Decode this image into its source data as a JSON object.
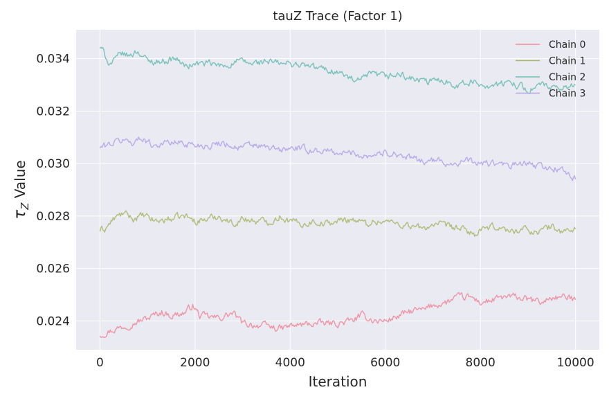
{
  "chart_data": {
    "type": "line",
    "title": "tauZ Trace (Factor 1)",
    "xlabel": "Iteration",
    "ylabel_symbol": "τ",
    "ylabel_subscript": "Z",
    "ylabel_suffix": " Value",
    "xlim": [
      -500,
      10500
    ],
    "ylim": [
      0.0229,
      0.0351
    ],
    "xticks": [
      0,
      2000,
      4000,
      6000,
      8000,
      10000
    ],
    "xtick_labels": [
      "0",
      "2000",
      "4000",
      "6000",
      "8000",
      "10000"
    ],
    "yticks": [
      0.024,
      0.026,
      0.028,
      0.03,
      0.032,
      0.034
    ],
    "ytick_labels": [
      "0.024",
      "0.026",
      "0.028",
      "0.030",
      "0.032",
      "0.034"
    ],
    "grid": true,
    "legend_position": "top-right",
    "background": "#eaeaf2",
    "series": [
      {
        "name": "Chain 0",
        "color": "#f08b9c",
        "x": [
          0,
          500,
          1000,
          1300,
          1500,
          1800,
          1950,
          2100,
          2500,
          2800,
          3000,
          3500,
          3800,
          4000,
          4500,
          5000,
          5300,
          5500,
          5800,
          6000,
          6300,
          6600,
          6800,
          7000,
          7300,
          7500,
          7800,
          8000,
          8300,
          8500,
          8800,
          9000,
          9300,
          9500,
          9800,
          10000
        ],
        "y": [
          0.02348,
          0.0238,
          0.0241,
          0.02435,
          0.0242,
          0.02432,
          0.0246,
          0.0242,
          0.0241,
          0.0243,
          0.0239,
          0.0238,
          0.0237,
          0.0238,
          0.0239,
          0.0239,
          0.024,
          0.0242,
          0.024,
          0.024,
          0.0242,
          0.0244,
          0.0244,
          0.0246,
          0.0247,
          0.0249,
          0.0249,
          0.0247,
          0.0248,
          0.0249,
          0.0249,
          0.0248,
          0.0247,
          0.0249,
          0.0249,
          0.0248
        ]
      },
      {
        "name": "Chain 1",
        "color": "#a8b86a",
        "x": [
          0,
          100,
          300,
          500,
          700,
          900,
          1200,
          1500,
          1800,
          2000,
          2300,
          2500,
          2800,
          3000,
          3300,
          3600,
          3800,
          4000,
          4300,
          4500,
          4800,
          5000,
          5300,
          5600,
          5800,
          6000,
          6300,
          6600,
          6800,
          7000,
          7300,
          7600,
          7900,
          8100,
          8400,
          8600,
          8900,
          9200,
          9500,
          9700,
          10000
        ],
        "y": [
          0.02745,
          0.0275,
          0.0279,
          0.0281,
          0.0279,
          0.028,
          0.0278,
          0.0279,
          0.028,
          0.0278,
          0.0279,
          0.028,
          0.0277,
          0.0279,
          0.0278,
          0.0278,
          0.028,
          0.0278,
          0.0277,
          0.0278,
          0.0277,
          0.0278,
          0.0279,
          0.0277,
          0.0278,
          0.0278,
          0.0277,
          0.0276,
          0.0275,
          0.0277,
          0.0276,
          0.0275,
          0.0273,
          0.0275,
          0.0276,
          0.0274,
          0.0275,
          0.0274,
          0.0276,
          0.0274,
          0.0275
        ]
      },
      {
        "name": "Chain 2",
        "color": "#6bbeb4",
        "x": [
          0,
          100,
          200,
          300,
          450,
          600,
          800,
          1000,
          1300,
          1600,
          1800,
          2000,
          2300,
          2600,
          2900,
          3200,
          3500,
          3800,
          4100,
          4400,
          4700,
          5000,
          5200,
          5400,
          5700,
          6000,
          6300,
          6600,
          6900,
          7200,
          7500,
          7800,
          8100,
          8400,
          8700,
          9000,
          9300,
          9600,
          9800,
          10000
        ],
        "y": [
          0.03442,
          0.0342,
          0.0338,
          0.0339,
          0.0342,
          0.0341,
          0.0343,
          0.0339,
          0.0339,
          0.034,
          0.0337,
          0.0338,
          0.0338,
          0.0337,
          0.0339,
          0.0338,
          0.0339,
          0.0338,
          0.0338,
          0.0337,
          0.0336,
          0.0335,
          0.0333,
          0.0331,
          0.0334,
          0.0333,
          0.0334,
          0.0332,
          0.0331,
          0.0332,
          0.033,
          0.0331,
          0.033,
          0.033,
          0.0331,
          0.0328,
          0.033,
          0.0328,
          0.0329,
          0.033
        ]
      },
      {
        "name": "Chain 3",
        "color": "#b4a4ea",
        "x": [
          0,
          150,
          300,
          500,
          700,
          900,
          1100,
          1400,
          1700,
          2000,
          2300,
          2600,
          2900,
          3200,
          3500,
          3800,
          4100,
          4400,
          4700,
          5000,
          5300,
          5600,
          5900,
          6200,
          6500,
          6800,
          7100,
          7400,
          7700,
          8000,
          8300,
          8600,
          8900,
          9200,
          9500,
          9700,
          10000
        ],
        "y": [
          0.0306,
          0.0307,
          0.0308,
          0.0309,
          0.0308,
          0.031,
          0.0307,
          0.0308,
          0.0308,
          0.0307,
          0.0307,
          0.0308,
          0.0306,
          0.0307,
          0.0306,
          0.0305,
          0.0306,
          0.0305,
          0.0305,
          0.0304,
          0.0304,
          0.0303,
          0.0304,
          0.0304,
          0.0302,
          0.0301,
          0.0301,
          0.03,
          0.0301,
          0.03,
          0.03,
          0.0299,
          0.03,
          0.0299,
          0.0298,
          0.0298,
          0.0294
        ]
      }
    ]
  }
}
